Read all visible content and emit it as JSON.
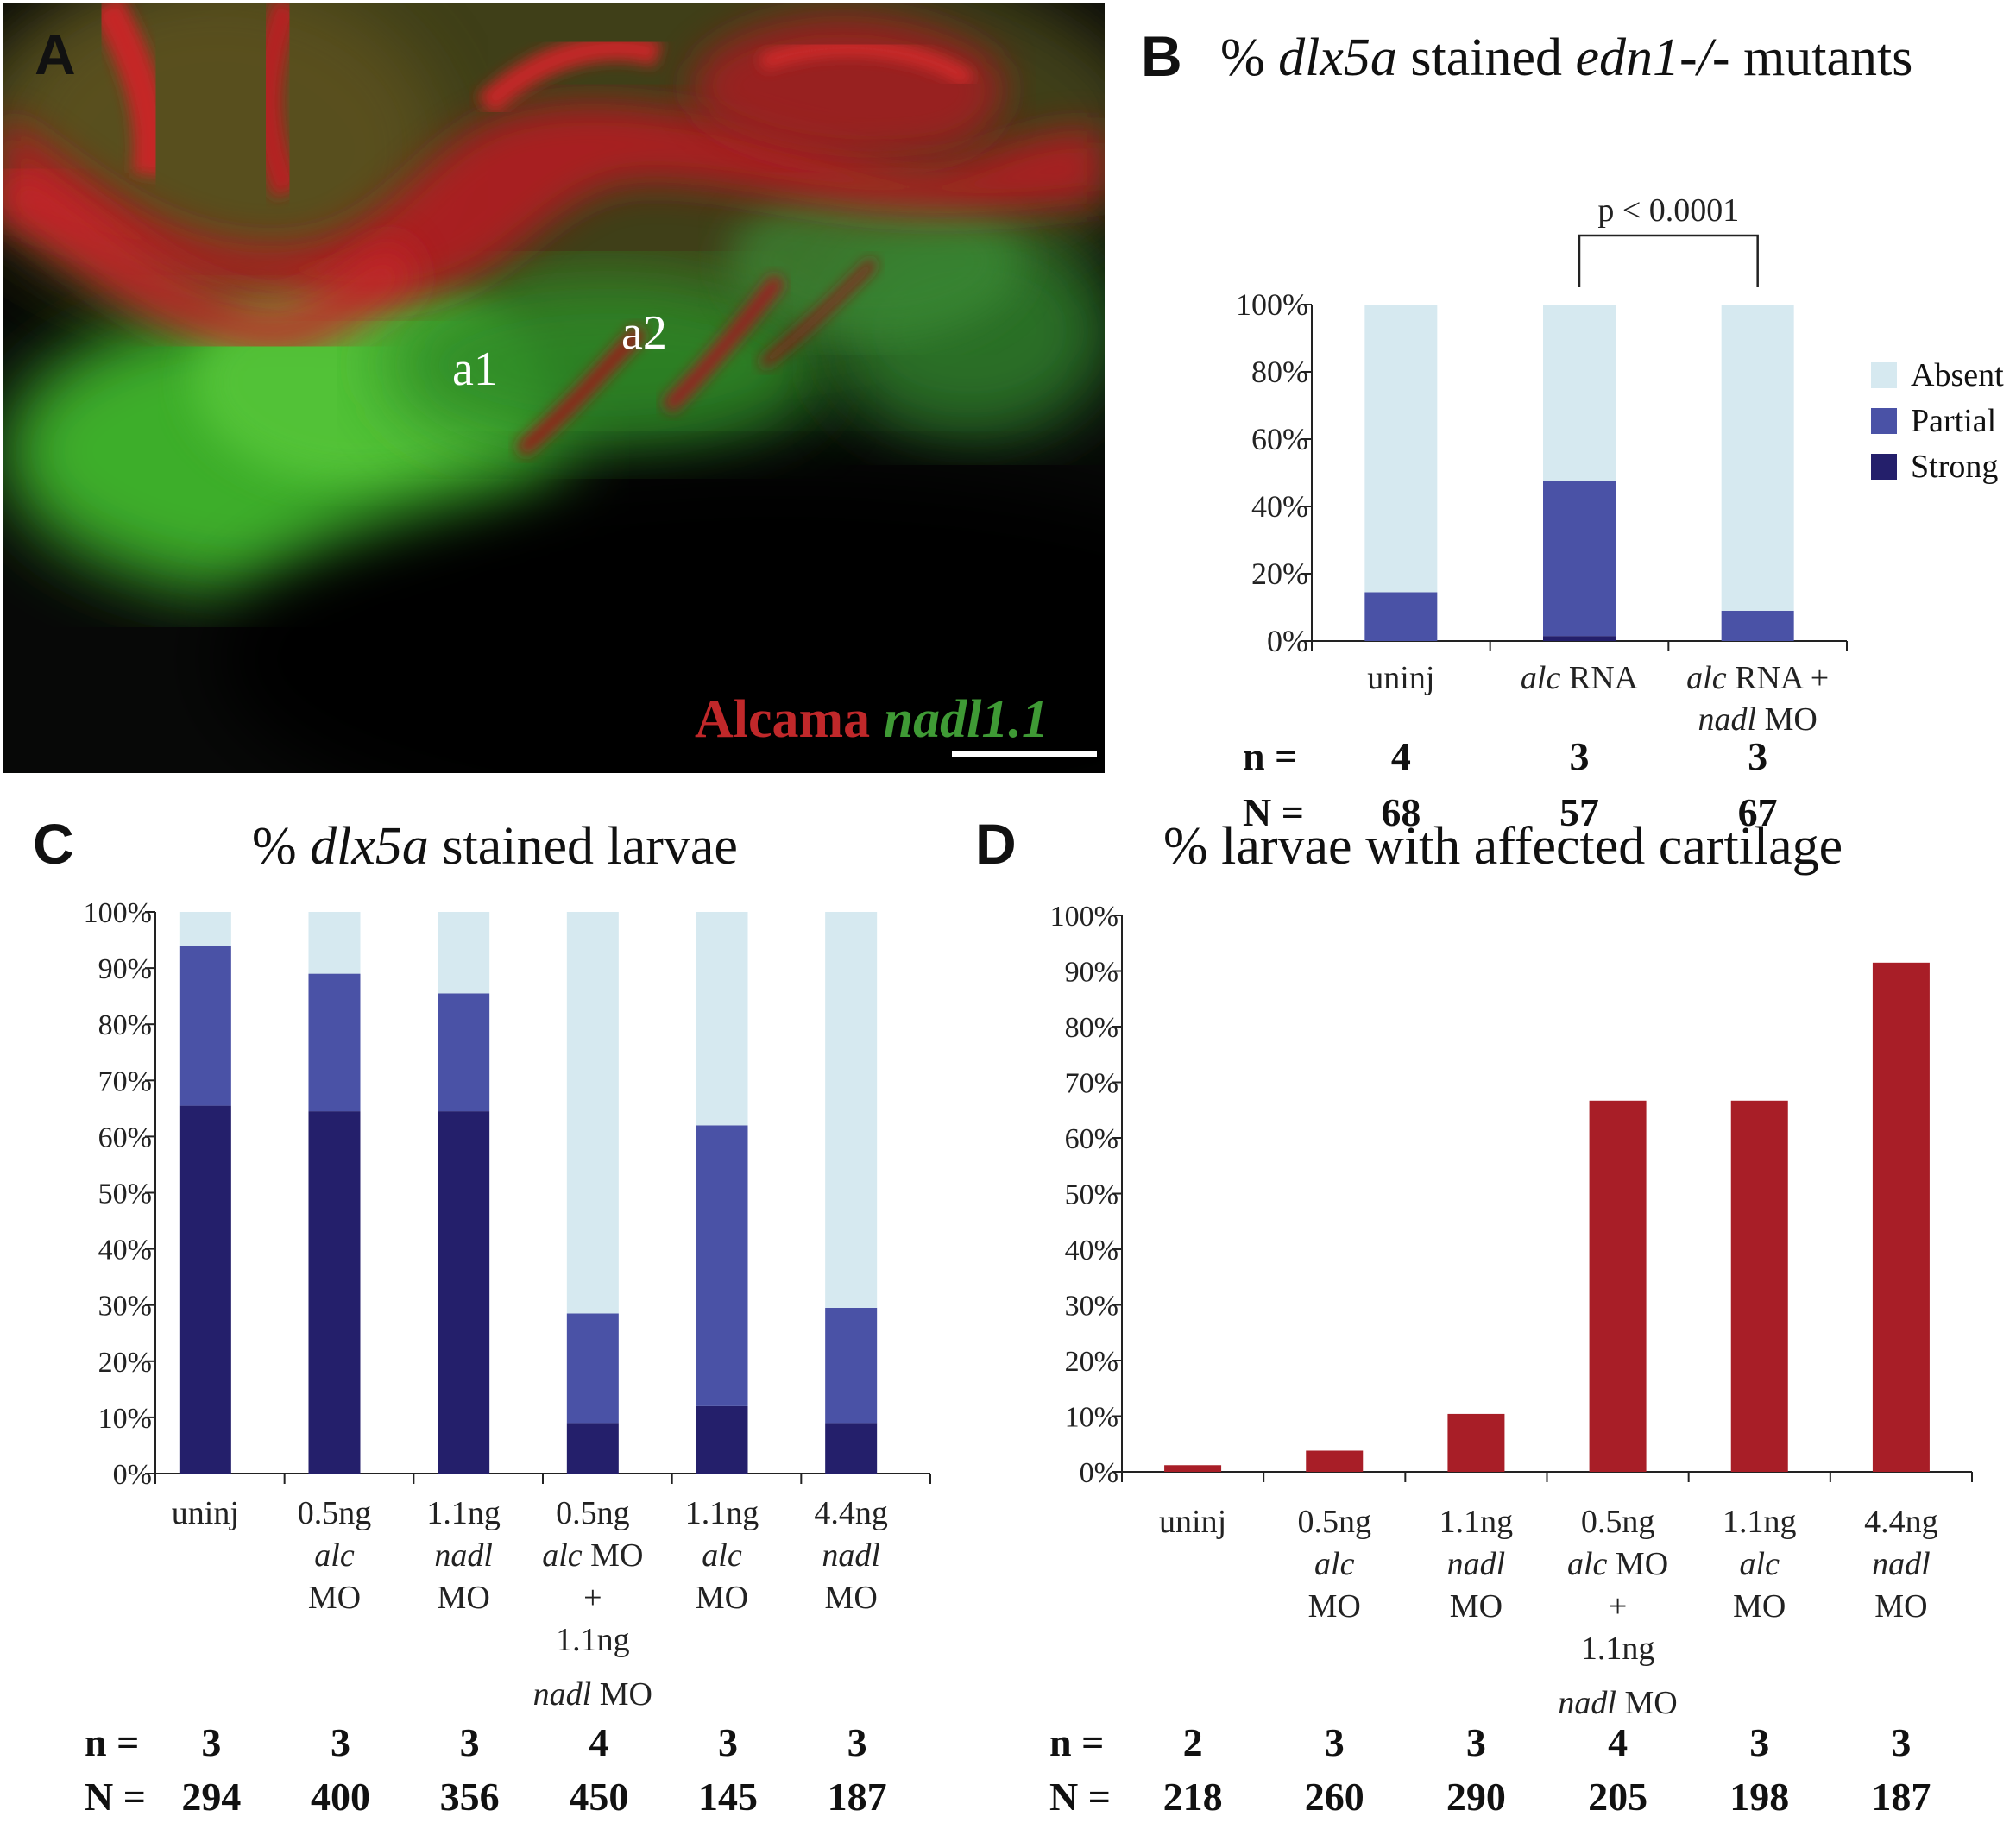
{
  "panel_a": {
    "letter": "A",
    "label_a1": "a1",
    "label_a2": "a2",
    "stain_red": "Alcama",
    "stain_green": "nadl1.1"
  },
  "panel_b": {
    "letter": "B",
    "title_pre": "% ",
    "title_gene": "dlx5a",
    "title_mid": " stained ",
    "title_geno": "edn1-/-",
    "title_post": " mutants",
    "pvalue": "p < 0.0001",
    "n_label": "n =",
    "N_label": "N =",
    "n": [
      "4",
      "3",
      "3"
    ],
    "N": [
      "68",
      "57",
      "67"
    ]
  },
  "panel_c": {
    "letter": "C",
    "title_pre": "% ",
    "title_gene": "dlx5a",
    "title_post": " stained larvae",
    "n_label": "n =",
    "N_label": "N =",
    "n": [
      "3",
      "3",
      "3",
      "4",
      "3",
      "3"
    ],
    "N": [
      "294",
      "400",
      "356",
      "450",
      "145",
      "187"
    ]
  },
  "panel_d": {
    "letter": "D",
    "title": "% larvae with affected cartilage",
    "n_label": "n =",
    "N_label": "N =",
    "n": [
      "2",
      "3",
      "3",
      "4",
      "3",
      "3"
    ],
    "N": [
      "218",
      "260",
      "290",
      "205",
      "198",
      "187"
    ]
  },
  "legend": [
    {
      "name": "Absent",
      "color": "#d6e9f0"
    },
    {
      "name": "Partial",
      "color": "#4a52a6"
    },
    {
      "name": "Strong",
      "color": "#241f6b"
    }
  ],
  "colors": {
    "absent": "#d6e9f0",
    "partial": "#4a52a6",
    "strong": "#241f6b",
    "affected": "#a81e27",
    "stain_red": "#c0282a",
    "stain_green": "#3f9a35"
  },
  "chart_data": [
    {
      "id": "B",
      "type": "bar",
      "stacked": true,
      "ylim": [
        0,
        100
      ],
      "yticks": [
        "0%",
        "20%",
        "40%",
        "60%",
        "80%",
        "100%"
      ],
      "categories": [
        [
          {
            "t": "uninj",
            "i": false
          }
        ],
        [
          {
            "t": "alc",
            "i": true
          },
          {
            "t": " RNA",
            "i": false
          }
        ],
        [
          {
            "t": "alc",
            "i": true
          },
          {
            "t": " RNA +",
            "i": false
          }
        ]
      ],
      "categories_line2": [
        [],
        [],
        [
          {
            "t": "nadl",
            "i": true
          },
          {
            "t": " MO",
            "i": false
          }
        ]
      ],
      "series": [
        {
          "name": "Strong",
          "values": [
            0,
            1.5,
            0
          ]
        },
        {
          "name": "Partial",
          "values": [
            14.5,
            46,
            9
          ]
        },
        {
          "name": "Absent",
          "values": [
            85.5,
            52.5,
            91
          ]
        }
      ],
      "legend": "right"
    },
    {
      "id": "C",
      "type": "bar",
      "stacked": true,
      "ylim": [
        0,
        100
      ],
      "yticks": [
        "0%",
        "10%",
        "20%",
        "30%",
        "40%",
        "50%",
        "60%",
        "70%",
        "80%",
        "90%",
        "100%"
      ],
      "categories": [
        [
          [
            {
              "t": "uninj",
              "i": false
            }
          ]
        ],
        [
          [
            {
              "t": "0.5ng",
              "i": false
            }
          ],
          [
            {
              "t": "alc",
              "i": true
            }
          ],
          [
            {
              "t": "MO",
              "i": false
            }
          ]
        ],
        [
          [
            {
              "t": "1.1ng",
              "i": false
            }
          ],
          [
            {
              "t": "nadl",
              "i": true
            }
          ],
          [
            {
              "t": "MO",
              "i": false
            }
          ]
        ],
        [
          [
            {
              "t": "0.5ng",
              "i": false
            }
          ],
          [
            {
              "t": "alc",
              "i": true
            },
            {
              "t": "  MO",
              "i": false
            }
          ],
          [
            {
              "t": "+",
              "i": false
            }
          ],
          [
            {
              "t": "1.1ng",
              "i": false
            }
          ],
          [
            {
              "t": "nadl",
              "i": true
            },
            {
              "t": "  MO",
              "i": false
            }
          ]
        ],
        [
          [
            {
              "t": "1.1ng",
              "i": false
            }
          ],
          [
            {
              "t": "alc",
              "i": true
            }
          ],
          [
            {
              "t": "MO",
              "i": false
            }
          ]
        ],
        [
          [
            {
              "t": "4.4ng",
              "i": false
            }
          ],
          [
            {
              "t": "nadl",
              "i": true
            }
          ],
          [
            {
              "t": "MO",
              "i": false
            }
          ]
        ]
      ],
      "series": [
        {
          "name": "Strong",
          "values": [
            65.5,
            64.5,
            64.5,
            9,
            12,
            9
          ]
        },
        {
          "name": "Partial",
          "values": [
            28.5,
            24.5,
            21,
            19.5,
            50,
            20.5
          ]
        },
        {
          "name": "Absent",
          "values": [
            6,
            11,
            14.5,
            71.5,
            38,
            70.5
          ]
        }
      ]
    },
    {
      "id": "D",
      "type": "bar",
      "stacked": false,
      "ylim": [
        0,
        100
      ],
      "yticks": [
        "0%",
        "10%",
        "20%",
        "30%",
        "40%",
        "50%",
        "60%",
        "70%",
        "80%",
        "90%",
        "100%"
      ],
      "categories": [
        [
          [
            {
              "t": "uninj",
              "i": false
            }
          ]
        ],
        [
          [
            {
              "t": "0.5ng",
              "i": false
            }
          ],
          [
            {
              "t": "alc",
              "i": true
            }
          ],
          [
            {
              "t": "MO",
              "i": false
            }
          ]
        ],
        [
          [
            {
              "t": "1.1ng",
              "i": false
            }
          ],
          [
            {
              "t": "nadl",
              "i": true
            }
          ],
          [
            {
              "t": "MO",
              "i": false
            }
          ]
        ],
        [
          [
            {
              "t": "0.5ng",
              "i": false
            }
          ],
          [
            {
              "t": "alc",
              "i": true
            },
            {
              "t": "  MO",
              "i": false
            }
          ],
          [
            {
              "t": "+",
              "i": false
            }
          ],
          [
            {
              "t": "1.1ng",
              "i": false
            }
          ],
          [
            {
              "t": "nadl",
              "i": true
            },
            {
              "t": "  MO",
              "i": false
            }
          ]
        ],
        [
          [
            {
              "t": "1.1ng",
              "i": false
            }
          ],
          [
            {
              "t": "alc",
              "i": true
            }
          ],
          [
            {
              "t": "MO",
              "i": false
            }
          ]
        ],
        [
          [
            {
              "t": "4.4ng",
              "i": false
            }
          ],
          [
            {
              "t": "nadl",
              "i": true
            }
          ],
          [
            {
              "t": "MO",
              "i": false
            }
          ]
        ]
      ],
      "values": [
        1.2,
        3.8,
        10.4,
        66.7,
        66.7,
        91.5
      ]
    }
  ]
}
